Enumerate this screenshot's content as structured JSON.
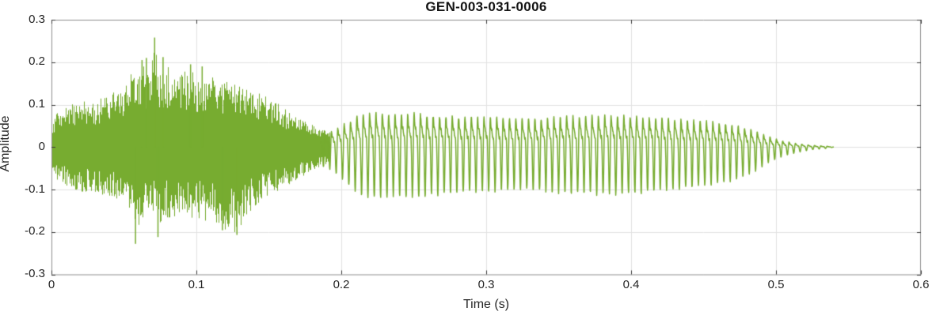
{
  "chart_data": {
    "type": "line",
    "title": "GEN-003-031-0006",
    "xlabel": "Time (s)",
    "ylabel": "Amplitude",
    "xlim": [
      0,
      0.6
    ],
    "ylim": [
      -0.3,
      0.3
    ],
    "xticks": [
      0,
      0.1,
      0.2,
      0.3,
      0.4,
      0.5,
      0.6
    ],
    "xtick_labels": [
      "0",
      "0.1",
      "0.2",
      "0.3",
      "0.4",
      "0.5",
      "0.6"
    ],
    "yticks": [
      -0.3,
      -0.2,
      -0.1,
      0,
      0.1,
      0.2,
      0.3
    ],
    "ytick_labels": [
      "-0.3",
      "-0.2",
      "-0.1",
      "0",
      "0.1",
      "0.2",
      "0.3"
    ],
    "grid": true,
    "legend": null,
    "style": {
      "line_color": "#77AC30",
      "grid_color": "#e2e2e2",
      "box_color": "#8f8f8f",
      "tick_color": "#3a3a3a",
      "text_color": "#262626",
      "title_color": "#141414",
      "background": "#ffffff"
    },
    "series": [
      {
        "name": "GEN-003-031-0006",
        "color": "#77AC30",
        "signal": {
          "kind": "speech_waveform",
          "duration_s": 0.54,
          "noise_seed": 20240613,
          "unvoiced_segment": {
            "t_start": 0.0,
            "t_end": 0.192,
            "envelope": [
              [
                0.0,
                0.055,
                -0.05
              ],
              [
                0.004,
                0.085,
                -0.08
              ],
              [
                0.01,
                0.1,
                -0.095
              ],
              [
                0.02,
                0.11,
                -0.105
              ],
              [
                0.03,
                0.115,
                -0.11
              ],
              [
                0.04,
                0.125,
                -0.12
              ],
              [
                0.05,
                0.14,
                -0.135
              ],
              [
                0.056,
                0.185,
                -0.15
              ],
              [
                0.06,
                0.16,
                -0.21
              ],
              [
                0.064,
                0.2,
                -0.15
              ],
              [
                0.068,
                0.17,
                -0.15
              ],
              [
                0.071,
                0.255,
                -0.16
              ],
              [
                0.074,
                0.17,
                -0.195
              ],
              [
                0.078,
                0.2,
                -0.17
              ],
              [
                0.085,
                0.175,
                -0.165
              ],
              [
                0.095,
                0.185,
                -0.17
              ],
              [
                0.105,
                0.17,
                -0.175
              ],
              [
                0.115,
                0.165,
                -0.185
              ],
              [
                0.122,
                0.155,
                -0.2
              ],
              [
                0.128,
                0.15,
                -0.205
              ],
              [
                0.135,
                0.145,
                -0.16
              ],
              [
                0.145,
                0.125,
                -0.13
              ],
              [
                0.155,
                0.105,
                -0.11
              ],
              [
                0.165,
                0.08,
                -0.085
              ],
              [
                0.175,
                0.06,
                -0.065
              ],
              [
                0.185,
                0.045,
                -0.048
              ],
              [
                0.192,
                0.035,
                -0.035
              ]
            ]
          },
          "spikes": [
            [
              0.058,
              -0.228
            ],
            [
              0.0625,
              0.205
            ],
            [
              0.0655,
              0.21
            ],
            [
              0.0712,
              0.258
            ],
            [
              0.0735,
              -0.212
            ],
            [
              0.077,
              0.212
            ],
            [
              0.096,
              0.195
            ],
            [
              0.104,
              0.19
            ],
            [
              0.118,
              -0.196
            ],
            [
              0.128,
              -0.207
            ]
          ],
          "voiced_segment": {
            "t_start": 0.186,
            "t_end": 0.54,
            "f0_hz": 228,
            "neg_ratio": 0.8,
            "jitter": 0.12,
            "harmonics": [
              [
                1,
                0.62,
                0
              ],
              [
                2,
                0.4,
                1.0
              ],
              [
                3,
                0.16,
                2.1
              ]
            ],
            "envelope": [
              [
                0.19,
                0.03
              ],
              [
                0.2,
                0.048
              ],
              [
                0.21,
                0.07
              ],
              [
                0.22,
                0.08
              ],
              [
                0.235,
                0.075
              ],
              [
                0.25,
                0.078
              ],
              [
                0.27,
                0.072
              ],
              [
                0.29,
                0.07
              ],
              [
                0.31,
                0.068
              ],
              [
                0.33,
                0.065
              ],
              [
                0.35,
                0.07
              ],
              [
                0.37,
                0.072
              ],
              [
                0.39,
                0.073
              ],
              [
                0.41,
                0.07
              ],
              [
                0.43,
                0.065
              ],
              [
                0.45,
                0.06
              ],
              [
                0.465,
                0.055
              ],
              [
                0.475,
                0.048
              ],
              [
                0.485,
                0.038
              ],
              [
                0.495,
                0.024
              ],
              [
                0.505,
                0.014
              ],
              [
                0.515,
                0.008
              ],
              [
                0.525,
                0.004
              ],
              [
                0.535,
                0.002
              ],
              [
                0.54,
                0.0
              ]
            ]
          }
        }
      }
    ]
  }
}
